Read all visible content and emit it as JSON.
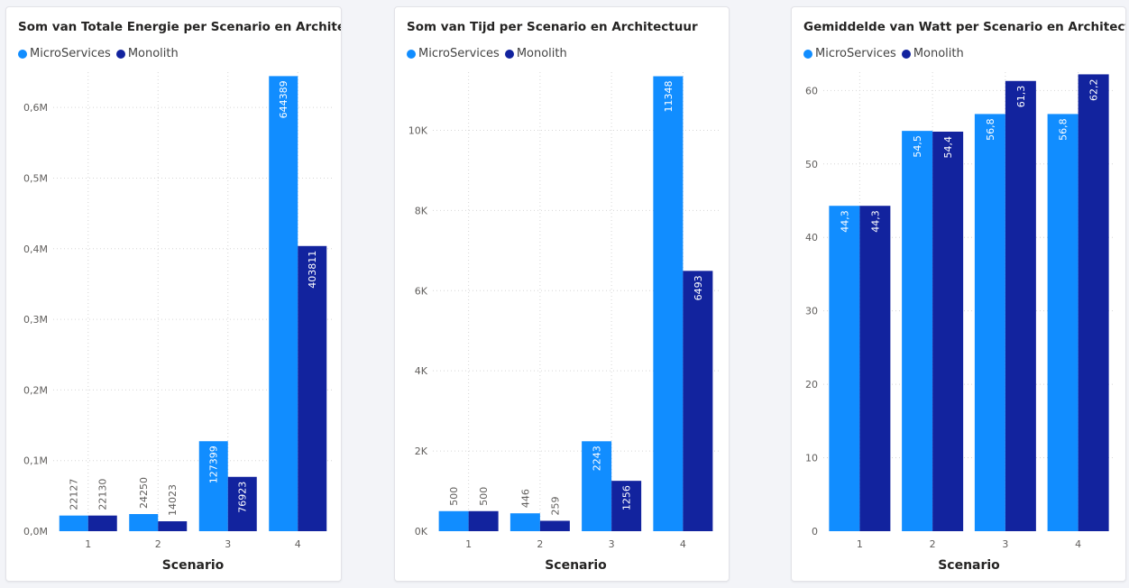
{
  "colors": {
    "microservices": "#118dff",
    "monolith": "#12239e",
    "grid": "#d6d6d6"
  },
  "chart_data": [
    {
      "type": "bar",
      "title": "Som van Totale Energie per Scenario en Architectuur",
      "xlabel": "Scenario",
      "ylabel": "",
      "categories": [
        "1",
        "2",
        "3",
        "4"
      ],
      "ylim": [
        0,
        650000
      ],
      "yticks": [
        0,
        100000,
        200000,
        300000,
        400000,
        500000,
        600000
      ],
      "ytick_labels": [
        "0,0M",
        "0,1M",
        "0,2M",
        "0,3M",
        "0,4M",
        "0,5M",
        "0,6M"
      ],
      "legend_position": "top-left",
      "grid": true,
      "series": [
        {
          "name": "MicroServices",
          "values": [
            22127,
            24250,
            127399,
            644389
          ],
          "labels": [
            "22127",
            "24250",
            "127399",
            "644389"
          ]
        },
        {
          "name": "Monolith",
          "values": [
            22130,
            14023,
            76923,
            403811
          ],
          "labels": [
            "22130",
            "14023",
            "76923",
            "403811"
          ]
        }
      ]
    },
    {
      "type": "bar",
      "title": "Som van Tijd per Scenario en Architectuur",
      "xlabel": "Scenario",
      "ylabel": "",
      "categories": [
        "1",
        "2",
        "3",
        "4"
      ],
      "ylim": [
        0,
        11450
      ],
      "yticks": [
        0,
        2000,
        4000,
        6000,
        8000,
        10000
      ],
      "ytick_labels": [
        "0K",
        "2K",
        "4K",
        "6K",
        "8K",
        "10K"
      ],
      "legend_position": "top-left",
      "grid": true,
      "series": [
        {
          "name": "MicroServices",
          "values": [
            500,
            446,
            2243,
            11348
          ],
          "labels": [
            "500",
            "446",
            "2243",
            "11348"
          ]
        },
        {
          "name": "Monolith",
          "values": [
            500,
            259,
            1256,
            6493
          ],
          "labels": [
            "500",
            "259",
            "1256",
            "6493"
          ]
        }
      ]
    },
    {
      "type": "bar",
      "title": "Gemiddelde van Watt per Scenario en Architectuur",
      "xlabel": "Scenario",
      "ylabel": "",
      "categories": [
        "1",
        "2",
        "3",
        "4"
      ],
      "ylim": [
        0,
        62.5
      ],
      "yticks": [
        0,
        10,
        20,
        30,
        40,
        50,
        60
      ],
      "ytick_labels": [
        "0",
        "10",
        "20",
        "30",
        "40",
        "50",
        "60"
      ],
      "legend_position": "top-left",
      "grid": true,
      "series": [
        {
          "name": "MicroServices",
          "values": [
            44.3,
            54.5,
            56.8,
            56.8
          ],
          "labels": [
            "44,3",
            "54,5",
            "56,8",
            "56,8"
          ]
        },
        {
          "name": "Monolith",
          "values": [
            44.3,
            54.4,
            61.3,
            62.2
          ],
          "labels": [
            "44,3",
            "54,4",
            "61,3",
            "62,2"
          ]
        }
      ]
    }
  ]
}
